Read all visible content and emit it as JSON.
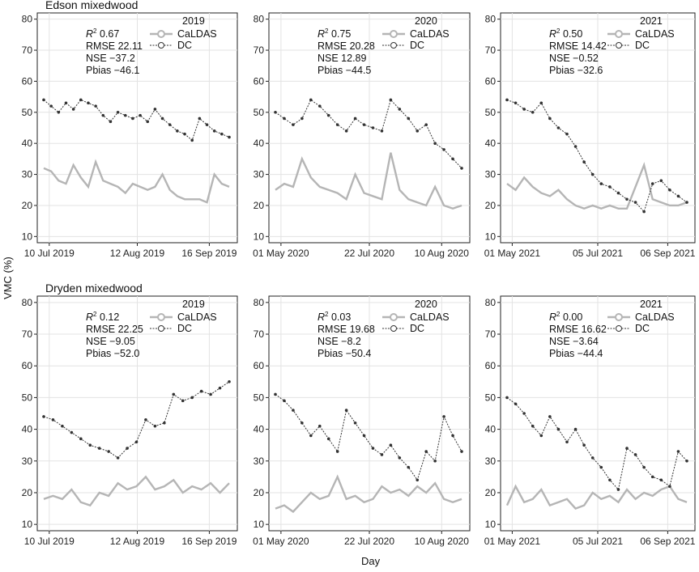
{
  "figure": {
    "row_titles": [
      "Edson mixedwood",
      "Dryden mixedwood"
    ],
    "ylabel": "VMC (%)",
    "xlabel": "Day",
    "colors": {
      "caldas": "#b5b5b5",
      "dc": "#333333",
      "grid": "#e3e3e3"
    }
  },
  "chart_data": [
    {
      "type": "line",
      "site": "Edson mixedwood",
      "year": "2019",
      "legend_title": "2019",
      "ylim": [
        8,
        82
      ],
      "yticks": [
        10,
        20,
        30,
        40,
        50,
        60,
        70,
        80
      ],
      "xticks": [
        "10 Jul 2019",
        "12 Aug 2019",
        "16 Sep 2019"
      ],
      "x": [
        0,
        3,
        6,
        9,
        12,
        15,
        18,
        21,
        24,
        27,
        30,
        33,
        36,
        39,
        42,
        45,
        48,
        51,
        54,
        57,
        60,
        63,
        66,
        69,
        72,
        75
      ],
      "series": [
        {
          "name": "CaLDAS",
          "values": [
            32,
            31,
            28,
            27,
            33,
            29,
            26,
            34,
            28,
            27,
            26,
            24,
            27,
            26,
            25,
            26,
            30,
            25,
            23,
            22,
            22,
            22,
            21,
            30,
            27,
            26
          ]
        },
        {
          "name": "DC",
          "values": [
            54,
            52,
            50,
            53,
            51,
            54,
            53,
            52,
            49,
            47,
            50,
            49,
            48,
            49,
            47,
            51,
            48,
            46,
            44,
            43,
            41,
            48,
            46,
            44,
            43,
            42
          ]
        }
      ],
      "stats": {
        "r2": "0.67",
        "rmse": "RMSE 22.11",
        "nse": "NSE −37.2",
        "pbias": "Pbias −46.1"
      }
    },
    {
      "type": "line",
      "site": "Edson mixedwood",
      "year": "2020",
      "legend_title": "2020",
      "ylim": [
        8,
        82
      ],
      "yticks": [
        10,
        20,
        30,
        40,
        50,
        60,
        70,
        80
      ],
      "xticks": [
        "01 May 2020",
        "22 Jul 2020",
        "10 Aug 2020"
      ],
      "x": [
        0,
        8,
        16,
        24,
        32,
        40,
        48,
        56,
        64,
        72,
        80,
        88,
        96,
        104,
        112,
        120,
        128,
        136,
        144,
        152,
        160,
        168
      ],
      "series": [
        {
          "name": "CaLDAS",
          "values": [
            25,
            27,
            26,
            35,
            29,
            26,
            25,
            24,
            22,
            30,
            24,
            23,
            22,
            37,
            25,
            22,
            21,
            20,
            26,
            20,
            19,
            20
          ]
        },
        {
          "name": "DC",
          "values": [
            50,
            48,
            46,
            48,
            54,
            52,
            49,
            46,
            44,
            48,
            46,
            45,
            44,
            54,
            51,
            48,
            44,
            46,
            40,
            38,
            35,
            32
          ]
        }
      ],
      "stats": {
        "r2": "0.75",
        "rmse": "RMSE 20.28",
        "nse": "NSE 12.89",
        "pbias": "Pbias −44.5"
      }
    },
    {
      "type": "line",
      "site": "Edson mixedwood",
      "year": "2021",
      "legend_title": "2021",
      "ylim": [
        8,
        82
      ],
      "yticks": [
        10,
        20,
        30,
        40,
        50,
        60,
        70,
        80
      ],
      "xticks": [
        "01 May 2021",
        "05 Jul 2021",
        "06 Sep 2021"
      ],
      "x": [
        0,
        8,
        16,
        24,
        32,
        40,
        48,
        56,
        64,
        72,
        80,
        88,
        96,
        104,
        112,
        120,
        128,
        136,
        144,
        152,
        160,
        168
      ],
      "series": [
        {
          "name": "CaLDAS",
          "values": [
            27,
            25,
            29,
            26,
            24,
            23,
            25,
            22,
            20,
            19,
            20,
            19,
            20,
            19,
            19,
            26,
            33,
            22,
            21,
            20,
            20,
            21
          ]
        },
        {
          "name": "DC",
          "values": [
            54,
            53,
            51,
            50,
            53,
            48,
            45,
            43,
            39,
            34,
            30,
            27,
            26,
            24,
            22,
            21,
            18,
            27,
            28,
            25,
            23,
            21
          ]
        }
      ],
      "stats": {
        "r2": "0.50",
        "rmse": "RMSE 14.42",
        "nse": "NSE −0.52",
        "pbias": "Pbias −32.6"
      }
    },
    {
      "type": "line",
      "site": "Dryden mixedwood",
      "year": "2019",
      "legend_title": "2019",
      "ylim": [
        8,
        82
      ],
      "yticks": [
        10,
        20,
        30,
        40,
        50,
        60,
        70,
        80
      ],
      "xticks": [
        "10 Jul 2019",
        "12 Aug 2019",
        "16 Sep 2019"
      ],
      "x": [
        0,
        4,
        8,
        12,
        16,
        20,
        24,
        28,
        32,
        36,
        40,
        44,
        48,
        52,
        56,
        60,
        64,
        68,
        72,
        76,
        80
      ],
      "series": [
        {
          "name": "CaLDAS",
          "values": [
            18,
            19,
            18,
            21,
            17,
            16,
            20,
            19,
            23,
            21,
            22,
            25,
            21,
            22,
            24,
            20,
            22,
            21,
            23,
            20,
            23
          ]
        },
        {
          "name": "DC",
          "values": [
            44,
            43,
            41,
            39,
            37,
            35,
            34,
            33,
            31,
            34,
            36,
            43,
            41,
            42,
            51,
            49,
            50,
            52,
            51,
            53,
            55
          ]
        }
      ],
      "stats": {
        "r2": "0.12",
        "rmse": "RMSE 22.25",
        "nse": "NSE −9.05",
        "pbias": "Pbias −52.0"
      }
    },
    {
      "type": "line",
      "site": "Dryden mixedwood",
      "year": "2020",
      "legend_title": "2020",
      "ylim": [
        8,
        82
      ],
      "yticks": [
        10,
        20,
        30,
        40,
        50,
        60,
        70,
        80
      ],
      "xticks": [
        "01 May 2020",
        "22 Jul 2020",
        "10 Aug 2020"
      ],
      "x": [
        0,
        8,
        16,
        24,
        32,
        40,
        48,
        56,
        64,
        72,
        80,
        88,
        96,
        104,
        112,
        120,
        128,
        136,
        144,
        152,
        160,
        168
      ],
      "series": [
        {
          "name": "CaLDAS",
          "values": [
            15,
            16,
            14,
            17,
            20,
            18,
            19,
            25,
            18,
            19,
            17,
            18,
            22,
            20,
            21,
            19,
            22,
            20,
            23,
            18,
            17,
            18
          ]
        },
        {
          "name": "DC",
          "values": [
            51,
            49,
            46,
            42,
            38,
            41,
            37,
            33,
            46,
            42,
            38,
            34,
            32,
            35,
            31,
            28,
            24,
            33,
            30,
            44,
            38,
            33
          ]
        }
      ],
      "stats": {
        "r2": "0.03",
        "rmse": "RMSE 19.68",
        "nse": "NSE −8.2",
        "pbias": "Pbias −50.4"
      }
    },
    {
      "type": "line",
      "site": "Dryden mixedwood",
      "year": "2021",
      "legend_title": "2021",
      "ylim": [
        8,
        82
      ],
      "yticks": [
        10,
        20,
        30,
        40,
        50,
        60,
        70,
        80
      ],
      "xticks": [
        "01 May 2021",
        "05 Jul 2021",
        "06 Sep 2021"
      ],
      "x": [
        0,
        8,
        16,
        24,
        32,
        40,
        48,
        56,
        64,
        72,
        80,
        88,
        96,
        104,
        112,
        120,
        128,
        136,
        144,
        152,
        160,
        168
      ],
      "series": [
        {
          "name": "CaLDAS",
          "values": [
            16,
            22,
            17,
            18,
            21,
            16,
            17,
            18,
            15,
            16,
            20,
            18,
            19,
            17,
            21,
            18,
            20,
            19,
            21,
            22,
            18,
            17
          ]
        },
        {
          "name": "DC",
          "values": [
            50,
            48,
            45,
            41,
            38,
            44,
            40,
            36,
            40,
            35,
            31,
            28,
            24,
            21,
            34,
            32,
            28,
            25,
            24,
            22,
            33,
            30
          ]
        }
      ],
      "stats": {
        "r2": "0.00",
        "rmse": "RMSE 16.62",
        "nse": "NSE −3.64",
        "pbias": "Pbias −44.4"
      }
    }
  ]
}
